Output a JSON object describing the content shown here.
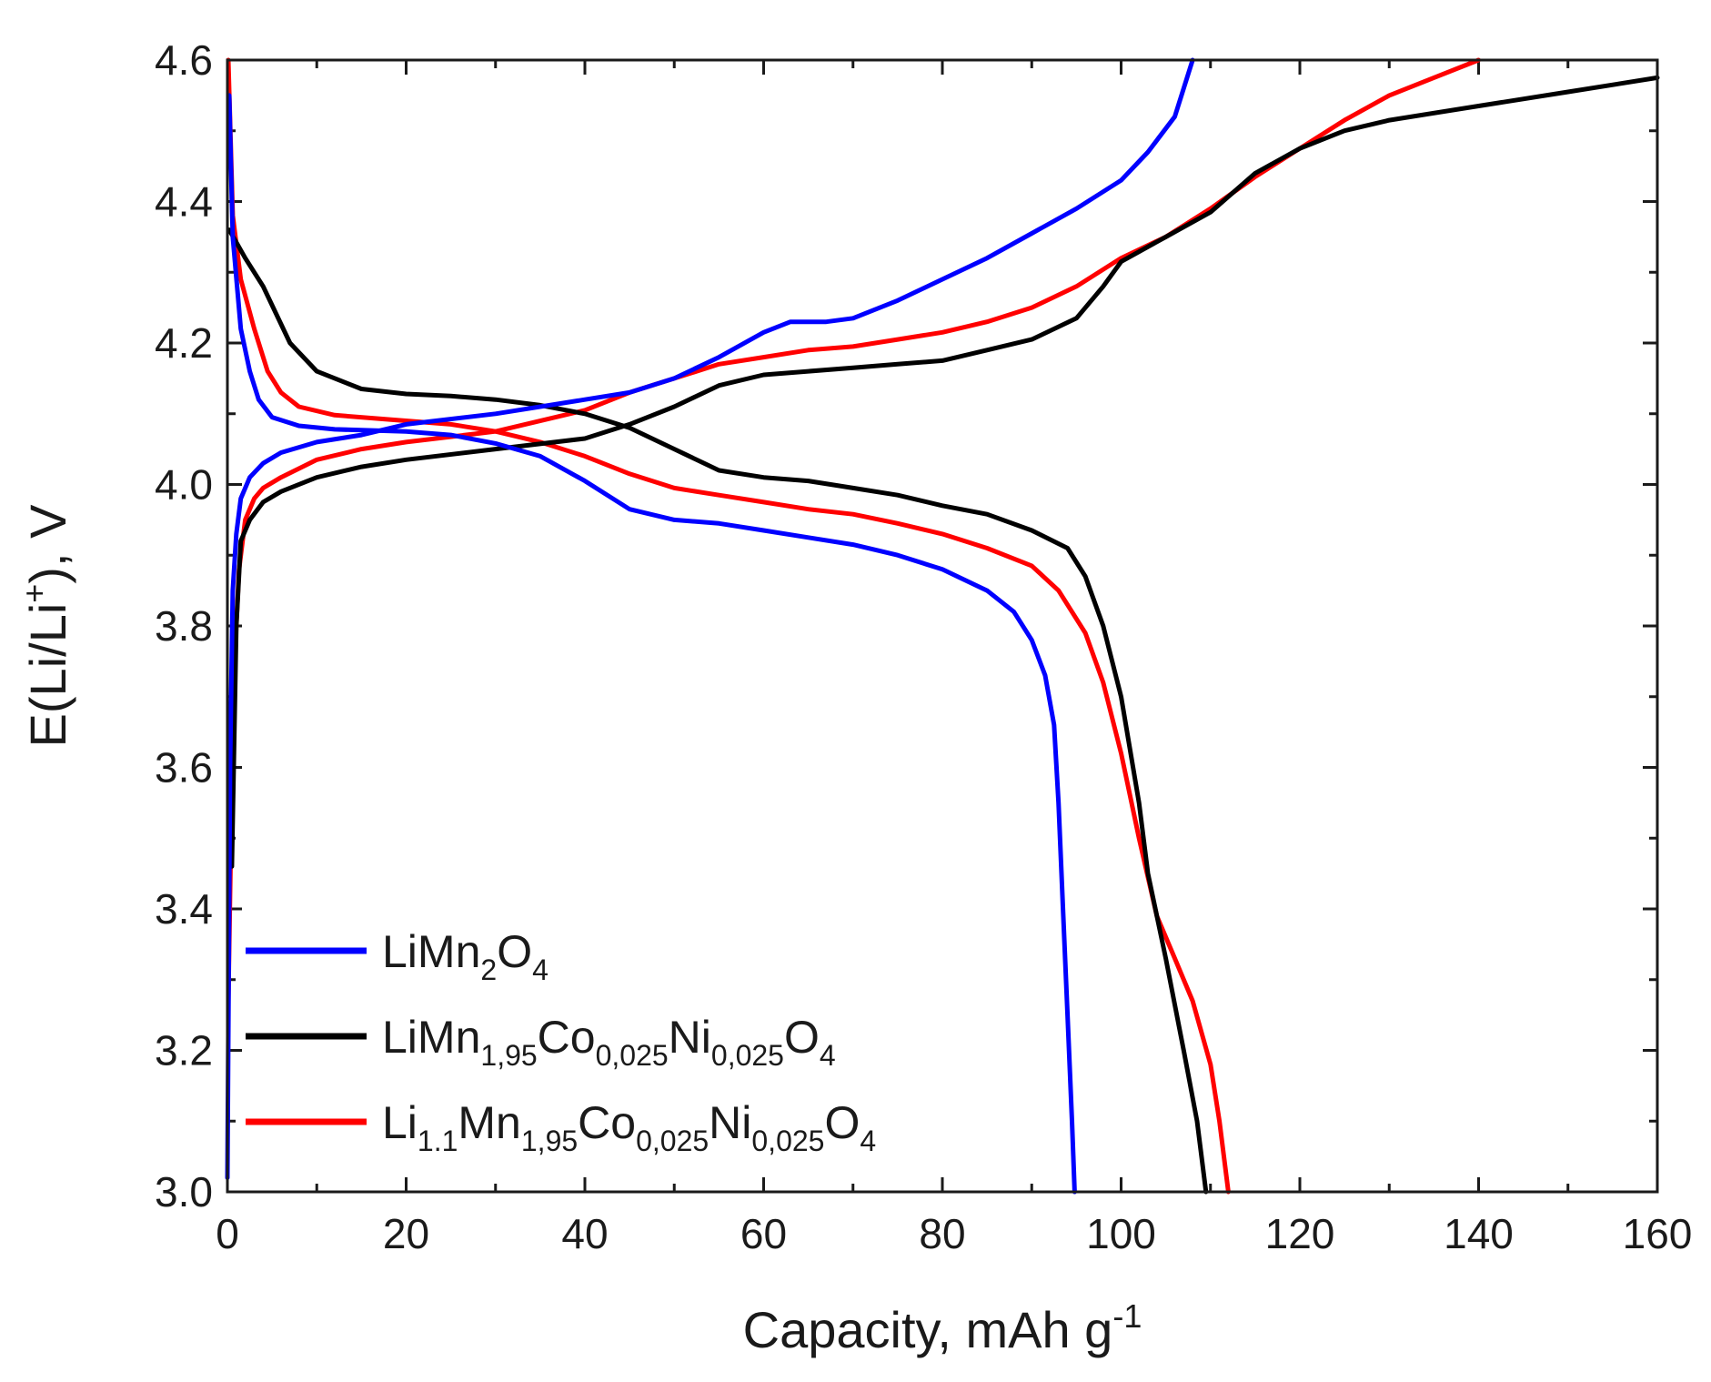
{
  "chart_data": {
    "type": "line",
    "xlabel": "Capacity, mAh g",
    "xlabel_sup": "-1",
    "ylabel": "E(Li/Li",
    "ylabel_sup": "+",
    "ylabel_end": "), V",
    "xlim": [
      0,
      160
    ],
    "ylim": [
      3.0,
      4.6
    ],
    "x_ticks": [
      "0",
      "20",
      "40",
      "60",
      "80",
      "100",
      "120",
      "140",
      "160"
    ],
    "y_ticks": [
      "3.0",
      "3.2",
      "3.4",
      "3.6",
      "3.8",
      "4.0",
      "4.2",
      "4.4",
      "4.6"
    ],
    "legend_position": "bottom-left",
    "series": [
      {
        "name": "LiMn2O4",
        "legend": [
          [
            "Li",
            ""
          ],
          [
            "Mn",
            ""
          ],
          [
            "2",
            "sub"
          ],
          [
            "O",
            ""
          ],
          [
            "4",
            "sub"
          ]
        ],
        "color": "#0000ff",
        "charge": [
          [
            0,
            3.02
          ],
          [
            0.3,
            3.6
          ],
          [
            0.6,
            3.85
          ],
          [
            1,
            3.93
          ],
          [
            1.5,
            3.98
          ],
          [
            2.5,
            4.01
          ],
          [
            4,
            4.03
          ],
          [
            6,
            4.045
          ],
          [
            10,
            4.06
          ],
          [
            15,
            4.07
          ],
          [
            20,
            4.085
          ],
          [
            30,
            4.1
          ],
          [
            40,
            4.12
          ],
          [
            45,
            4.13
          ],
          [
            50,
            4.15
          ],
          [
            55,
            4.18
          ],
          [
            60,
            4.215
          ],
          [
            63,
            4.23
          ],
          [
            67,
            4.23
          ],
          [
            70,
            4.235
          ],
          [
            75,
            4.26
          ],
          [
            80,
            4.29
          ],
          [
            85,
            4.32
          ],
          [
            90,
            4.355
          ],
          [
            95,
            4.39
          ],
          [
            100,
            4.43
          ],
          [
            103,
            4.47
          ],
          [
            106,
            4.52
          ],
          [
            107,
            4.56
          ],
          [
            108,
            4.6
          ]
        ],
        "discharge": [
          [
            0.2,
            4.55
          ],
          [
            0.6,
            4.35
          ],
          [
            1.5,
            4.22
          ],
          [
            2.5,
            4.16
          ],
          [
            3.5,
            4.12
          ],
          [
            5,
            4.095
          ],
          [
            8,
            4.083
          ],
          [
            12,
            4.078
          ],
          [
            20,
            4.075
          ],
          [
            25,
            4.07
          ],
          [
            30,
            4.058
          ],
          [
            35,
            4.04
          ],
          [
            40,
            4.005
          ],
          [
            45,
            3.965
          ],
          [
            50,
            3.95
          ],
          [
            55,
            3.945
          ],
          [
            60,
            3.935
          ],
          [
            65,
            3.925
          ],
          [
            70,
            3.915
          ],
          [
            75,
            3.9
          ],
          [
            80,
            3.88
          ],
          [
            85,
            3.85
          ],
          [
            88,
            3.82
          ],
          [
            90,
            3.78
          ],
          [
            91.5,
            3.73
          ],
          [
            92.5,
            3.66
          ],
          [
            93,
            3.55
          ],
          [
            93.5,
            3.4
          ],
          [
            94,
            3.25
          ],
          [
            94.5,
            3.1
          ],
          [
            94.8,
            3.0
          ]
        ]
      },
      {
        "name": "LiMn1,95Co0,025Ni0,025O4",
        "legend": [
          [
            "Li",
            ""
          ],
          [
            "Mn",
            ""
          ],
          [
            "1,95",
            "sub"
          ],
          [
            "Co",
            ""
          ],
          [
            "0,025",
            "sub"
          ],
          [
            "Ni",
            ""
          ],
          [
            "0,025",
            "sub"
          ],
          [
            "O",
            ""
          ],
          [
            "4",
            "sub"
          ]
        ],
        "color": "#000000",
        "charge": [
          [
            0.5,
            3.46
          ],
          [
            1,
            3.8
          ],
          [
            1.5,
            3.92
          ],
          [
            2.5,
            3.95
          ],
          [
            4,
            3.975
          ],
          [
            6,
            3.99
          ],
          [
            10,
            4.01
          ],
          [
            15,
            4.025
          ],
          [
            20,
            4.035
          ],
          [
            30,
            4.05
          ],
          [
            40,
            4.065
          ],
          [
            45,
            4.085
          ],
          [
            50,
            4.11
          ],
          [
            55,
            4.14
          ],
          [
            60,
            4.155
          ],
          [
            65,
            4.16
          ],
          [
            70,
            4.165
          ],
          [
            75,
            4.17
          ],
          [
            80,
            4.175
          ],
          [
            85,
            4.19
          ],
          [
            90,
            4.205
          ],
          [
            95,
            4.235
          ],
          [
            98,
            4.28
          ],
          [
            100,
            4.315
          ],
          [
            105,
            4.35
          ],
          [
            110,
            4.385
          ],
          [
            115,
            4.44
          ],
          [
            120,
            4.475
          ],
          [
            125,
            4.5
          ],
          [
            130,
            4.515
          ],
          [
            140,
            4.535
          ],
          [
            150,
            4.555
          ],
          [
            160,
            4.575
          ]
        ],
        "discharge": [
          [
            0.2,
            4.36
          ],
          [
            2,
            4.32
          ],
          [
            4,
            4.28
          ],
          [
            7,
            4.2
          ],
          [
            10,
            4.16
          ],
          [
            15,
            4.135
          ],
          [
            20,
            4.128
          ],
          [
            25,
            4.125
          ],
          [
            30,
            4.12
          ],
          [
            35,
            4.112
          ],
          [
            40,
            4.1
          ],
          [
            45,
            4.08
          ],
          [
            50,
            4.05
          ],
          [
            55,
            4.02
          ],
          [
            60,
            4.01
          ],
          [
            65,
            4.005
          ],
          [
            70,
            3.995
          ],
          [
            75,
            3.985
          ],
          [
            80,
            3.97
          ],
          [
            85,
            3.958
          ],
          [
            90,
            3.935
          ],
          [
            94,
            3.91
          ],
          [
            96,
            3.87
          ],
          [
            98,
            3.8
          ],
          [
            100,
            3.7
          ],
          [
            102,
            3.55
          ],
          [
            103,
            3.45
          ],
          [
            105,
            3.33
          ],
          [
            107,
            3.2
          ],
          [
            108.5,
            3.1
          ],
          [
            109.5,
            3.0
          ]
        ]
      },
      {
        "name": "Li1.1Mn1,95Co0,025Ni0,025O4",
        "legend": [
          [
            "Li",
            ""
          ],
          [
            "1.1",
            "sub"
          ],
          [
            "Mn",
            ""
          ],
          [
            "1,95",
            "sub"
          ],
          [
            "Co",
            ""
          ],
          [
            "0,025",
            "sub"
          ],
          [
            "Ni",
            ""
          ],
          [
            "0,025",
            "sub"
          ],
          [
            "O",
            ""
          ],
          [
            "4",
            "sub"
          ]
        ],
        "color": "#ff0000",
        "charge": [
          [
            0.1,
            3.27
          ],
          [
            0.4,
            3.5
          ],
          [
            0.8,
            3.75
          ],
          [
            1.3,
            3.88
          ],
          [
            2,
            3.95
          ],
          [
            3,
            3.98
          ],
          [
            4,
            3.995
          ],
          [
            6,
            4.01
          ],
          [
            10,
            4.035
          ],
          [
            15,
            4.05
          ],
          [
            20,
            4.06
          ],
          [
            30,
            4.075
          ],
          [
            40,
            4.105
          ],
          [
            45,
            4.13
          ],
          [
            50,
            4.15
          ],
          [
            55,
            4.17
          ],
          [
            60,
            4.18
          ],
          [
            65,
            4.19
          ],
          [
            70,
            4.195
          ],
          [
            75,
            4.205
          ],
          [
            80,
            4.215
          ],
          [
            85,
            4.23
          ],
          [
            90,
            4.25
          ],
          [
            95,
            4.28
          ],
          [
            100,
            4.32
          ],
          [
            105,
            4.35
          ],
          [
            110,
            4.39
          ],
          [
            115,
            4.435
          ],
          [
            120,
            4.475
          ],
          [
            125,
            4.515
          ],
          [
            130,
            4.55
          ],
          [
            135,
            4.575
          ],
          [
            140,
            4.6
          ]
        ],
        "discharge": [
          [
            0.1,
            4.6
          ],
          [
            0.6,
            4.38
          ],
          [
            1.5,
            4.29
          ],
          [
            3,
            4.22
          ],
          [
            4.5,
            4.16
          ],
          [
            6,
            4.13
          ],
          [
            8,
            4.11
          ],
          [
            12,
            4.098
          ],
          [
            18,
            4.092
          ],
          [
            25,
            4.085
          ],
          [
            30,
            4.075
          ],
          [
            35,
            4.06
          ],
          [
            40,
            4.04
          ],
          [
            45,
            4.015
          ],
          [
            50,
            3.995
          ],
          [
            55,
            3.985
          ],
          [
            60,
            3.975
          ],
          [
            65,
            3.965
          ],
          [
            70,
            3.958
          ],
          [
            75,
            3.945
          ],
          [
            80,
            3.93
          ],
          [
            85,
            3.91
          ],
          [
            90,
            3.885
          ],
          [
            93,
            3.85
          ],
          [
            96,
            3.79
          ],
          [
            98,
            3.72
          ],
          [
            100,
            3.62
          ],
          [
            102,
            3.5
          ],
          [
            104,
            3.39
          ],
          [
            106,
            3.33
          ],
          [
            108,
            3.27
          ],
          [
            110,
            3.18
          ],
          [
            111,
            3.1
          ],
          [
            112,
            3.0
          ]
        ]
      }
    ]
  }
}
